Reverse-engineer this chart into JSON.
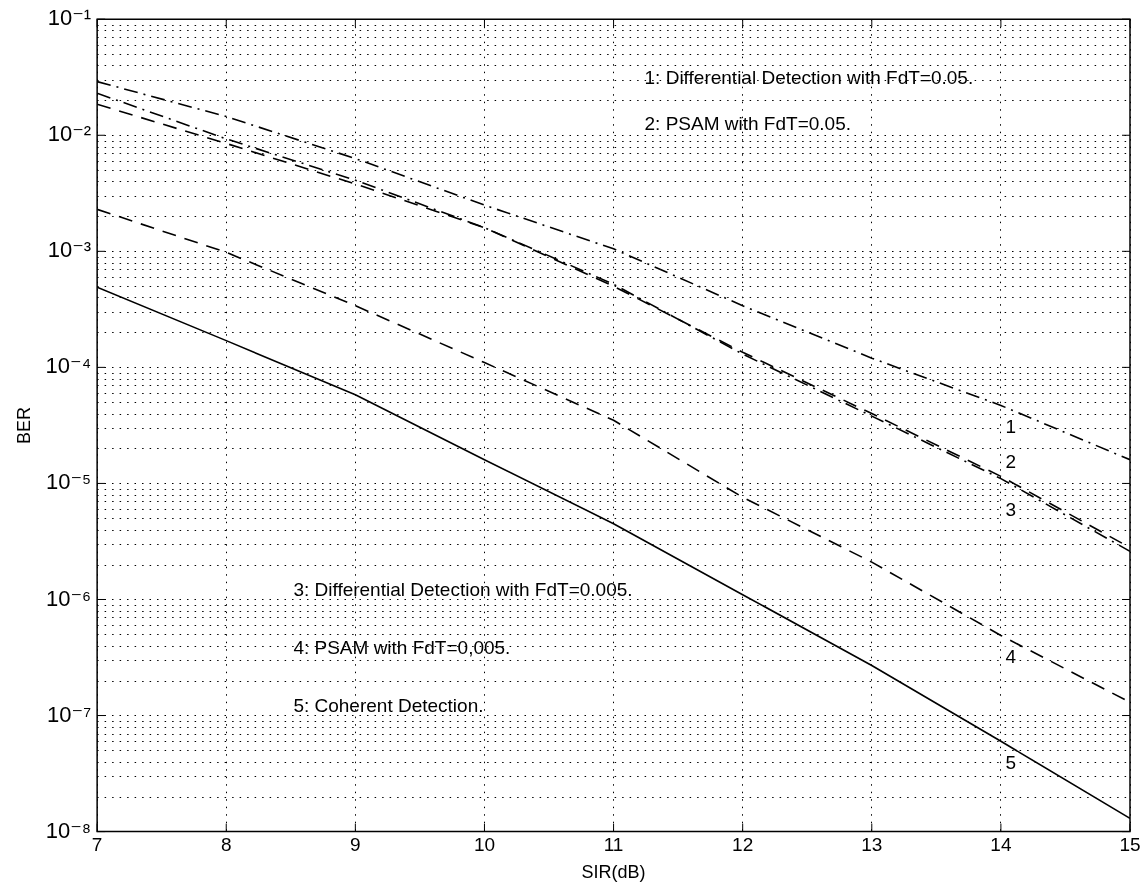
{
  "chart_data": {
    "type": "line",
    "xlabel": "SIR(dB)",
    "ylabel": "BER",
    "log": "y",
    "grid": true,
    "legend": false,
    "marker": "none",
    "x": [
      7,
      8,
      9,
      10,
      11,
      12,
      13,
      14,
      15
    ],
    "xlim": [
      7,
      15
    ],
    "xticks": [
      7,
      8,
      9,
      10,
      11,
      12,
      13,
      14,
      15
    ],
    "ylim": [
      1e-08,
      0.1
    ],
    "yticks": [
      {
        "value": 0.1,
        "label": "10⁻¹"
      },
      {
        "value": 0.01,
        "label": "10⁻²"
      },
      {
        "value": 0.001,
        "label": "10⁻³"
      },
      {
        "value": 0.0001,
        "label": "10⁻⁴"
      },
      {
        "value": 1e-05,
        "label": "10⁻⁵"
      },
      {
        "value": 1e-06,
        "label": "10⁻⁶"
      },
      {
        "value": 1e-07,
        "label": "10⁻⁷"
      },
      {
        "value": 1e-08,
        "label": "10⁻⁸"
      }
    ],
    "series": [
      {
        "color": "#000000",
        "line_style": "dashdot",
        "values": [
          0.029,
          0.0145,
          0.0063,
          0.0025,
          0.00105,
          0.00034,
          0.00012,
          4.7e-05,
          1.6e-05
        ]
      },
      {
        "color": "#000000",
        "line_style": "dashed",
        "values": [
          0.0185,
          0.0085,
          0.0038,
          0.0016,
          0.0005,
          0.000135,
          4e-05,
          1.15e-05,
          2.8e-06
        ]
      },
      {
        "color": "#000000",
        "line_style": "dashdot",
        "values": [
          0.023,
          0.0093,
          0.0041,
          0.0016,
          0.00052,
          0.00013,
          3.8e-05,
          1.1e-05,
          2.6e-06
        ]
      },
      {
        "color": "#000000",
        "line_style": "dashed",
        "values": [
          0.0023,
          0.00098,
          0.00034,
          0.00011,
          3.5e-05,
          7.6e-06,
          2.1e-06,
          4.9e-07,
          1.3e-07
        ]
      },
      {
        "color": "#000000",
        "line_style": "solid",
        "values": [
          0.00049,
          0.00017,
          5.8e-05,
          1.6e-05,
          4.5e-06,
          1.1e-06,
          2.7e-07,
          6e-08,
          1.3e-08
        ]
      }
    ],
    "annotations": [
      "1: Differential Detection with FdT=0.05.",
      "2: PSAM with FdT=0.05.",
      "3: Differential Detection with FdT=0.005.",
      "4: PSAM with FdT=0,005.",
      "5: Coherent Detection.",
      "1",
      "2",
      "3",
      "4",
      "5"
    ]
  }
}
